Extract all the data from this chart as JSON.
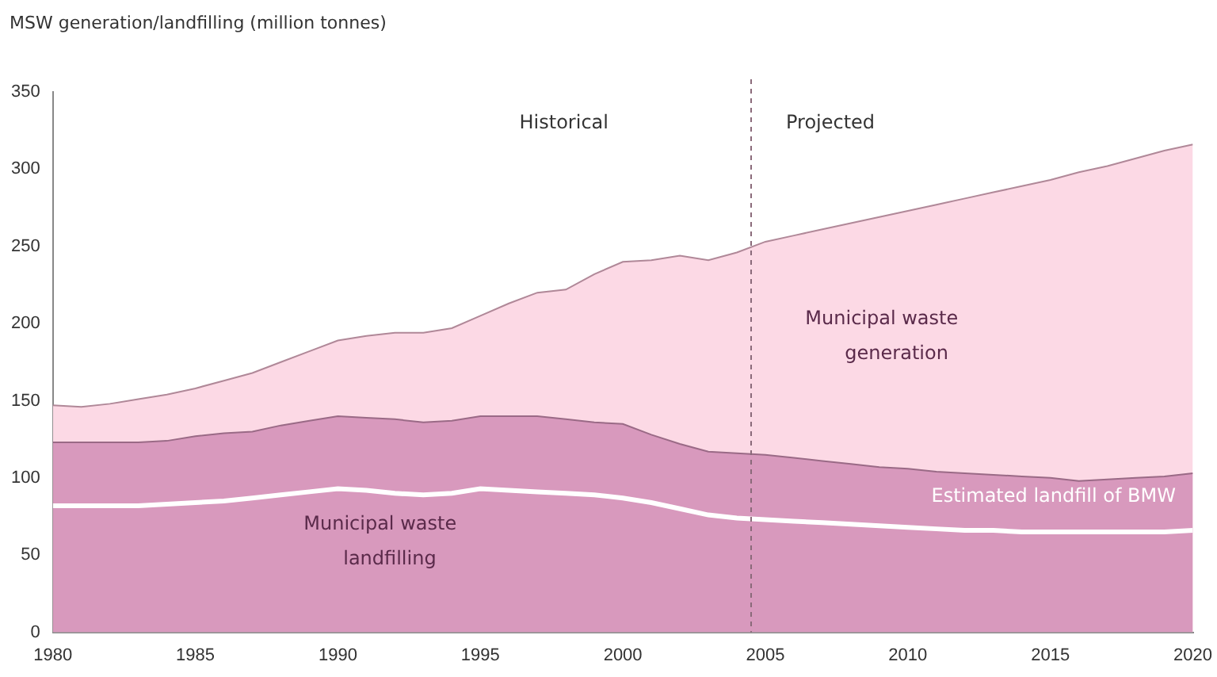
{
  "chart_data": {
    "type": "area",
    "ylabel": "MSW generation/landfilling (million tonnes)",
    "x": [
      1980,
      1981,
      1982,
      1983,
      1984,
      1985,
      1986,
      1987,
      1988,
      1989,
      1990,
      1991,
      1992,
      1993,
      1994,
      1995,
      1996,
      1997,
      1998,
      1999,
      2000,
      2001,
      2002,
      2003,
      2004,
      2005,
      2006,
      2007,
      2008,
      2009,
      2010,
      2011,
      2012,
      2013,
      2014,
      2015,
      2016,
      2017,
      2018,
      2019,
      2020
    ],
    "series": [
      {
        "name": "Municipal waste generation",
        "color": "#fcd9e5",
        "values": [
          147,
          146,
          148,
          151,
          154,
          158,
          163,
          168,
          175,
          182,
          189,
          192,
          194,
          194,
          197,
          205,
          213,
          220,
          222,
          232,
          240,
          241,
          244,
          241,
          246,
          253,
          257,
          261,
          265,
          269,
          273,
          277,
          281,
          285,
          289,
          293,
          298,
          302,
          307,
          312,
          316
        ]
      },
      {
        "name": "Municipal waste landfilling",
        "color": "#d899bd",
        "values": [
          123,
          123,
          123,
          123,
          124,
          127,
          129,
          130,
          134,
          137,
          140,
          139,
          138,
          136,
          137,
          140,
          140,
          140,
          138,
          136,
          135,
          128,
          122,
          117,
          116,
          115,
          113,
          111,
          109,
          107,
          106,
          104,
          103,
          102,
          101,
          100,
          98,
          99,
          100,
          101,
          103
        ]
      },
      {
        "name": "Estimated landfill of BMW",
        "type": "line",
        "color": "#ffffff",
        "values": [
          82,
          82,
          82,
          82,
          83,
          84,
          85,
          87,
          89,
          91,
          93,
          92,
          90,
          89,
          90,
          93,
          92,
          91,
          90,
          89,
          87,
          84,
          80,
          76,
          74,
          73,
          72,
          71,
          70,
          69,
          68,
          67,
          66,
          66,
          65,
          65,
          65,
          65,
          65,
          65,
          66
        ]
      }
    ],
    "xlim": [
      1980,
      2020
    ],
    "xticks": [
      1980,
      1985,
      1990,
      1995,
      2000,
      2005,
      2010,
      2015,
      2020
    ],
    "ylim": [
      0,
      350
    ],
    "yticks": [
      0,
      50,
      100,
      150,
      200,
      250,
      300,
      350
    ],
    "ref_lines": [
      {
        "axis": "x",
        "value": 2004.5,
        "line_style": "dashed",
        "color": "#8a6a7a"
      }
    ],
    "annotations": [
      "Historical",
      "Projected"
    ],
    "grid": false,
    "legend": false
  }
}
